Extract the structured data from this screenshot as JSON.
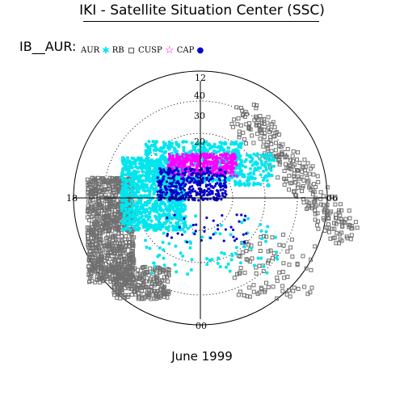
{
  "title": "IKI - Satellite Situation Center (SSC)",
  "series_label": "IB__AUR:",
  "footer": "June 1999",
  "legend": [
    {
      "label": "AUR",
      "color": "#00e5ee",
      "marker": "asterisk"
    },
    {
      "label": "RB",
      "color": "#707070",
      "marker": "square"
    },
    {
      "label": "CUSP",
      "color": "#ff00ff",
      "marker": "star"
    },
    {
      "label": "CAP",
      "color": "#0000cc",
      "marker": "dot"
    }
  ],
  "chart_data": {
    "type": "scatter",
    "title": "IKI - Satellite Situation Center (SSC)",
    "coordinate_system": "polar (magnetic local time / latitude)",
    "angular_tick_labels": [
      "12",
      "18",
      "06",
      "00"
    ],
    "radial_tick_labels": [
      "40",
      "30",
      "20"
    ],
    "grid": true,
    "series": [
      {
        "name": "AUR",
        "color": "#00e5ee",
        "marker": "asterisk"
      },
      {
        "name": "RB",
        "color": "#707070",
        "marker": "square"
      },
      {
        "name": "CUSP",
        "color": "#ff00ff",
        "marker": "star"
      },
      {
        "name": "CAP",
        "color": "#0000cc",
        "marker": "dot"
      }
    ]
  }
}
